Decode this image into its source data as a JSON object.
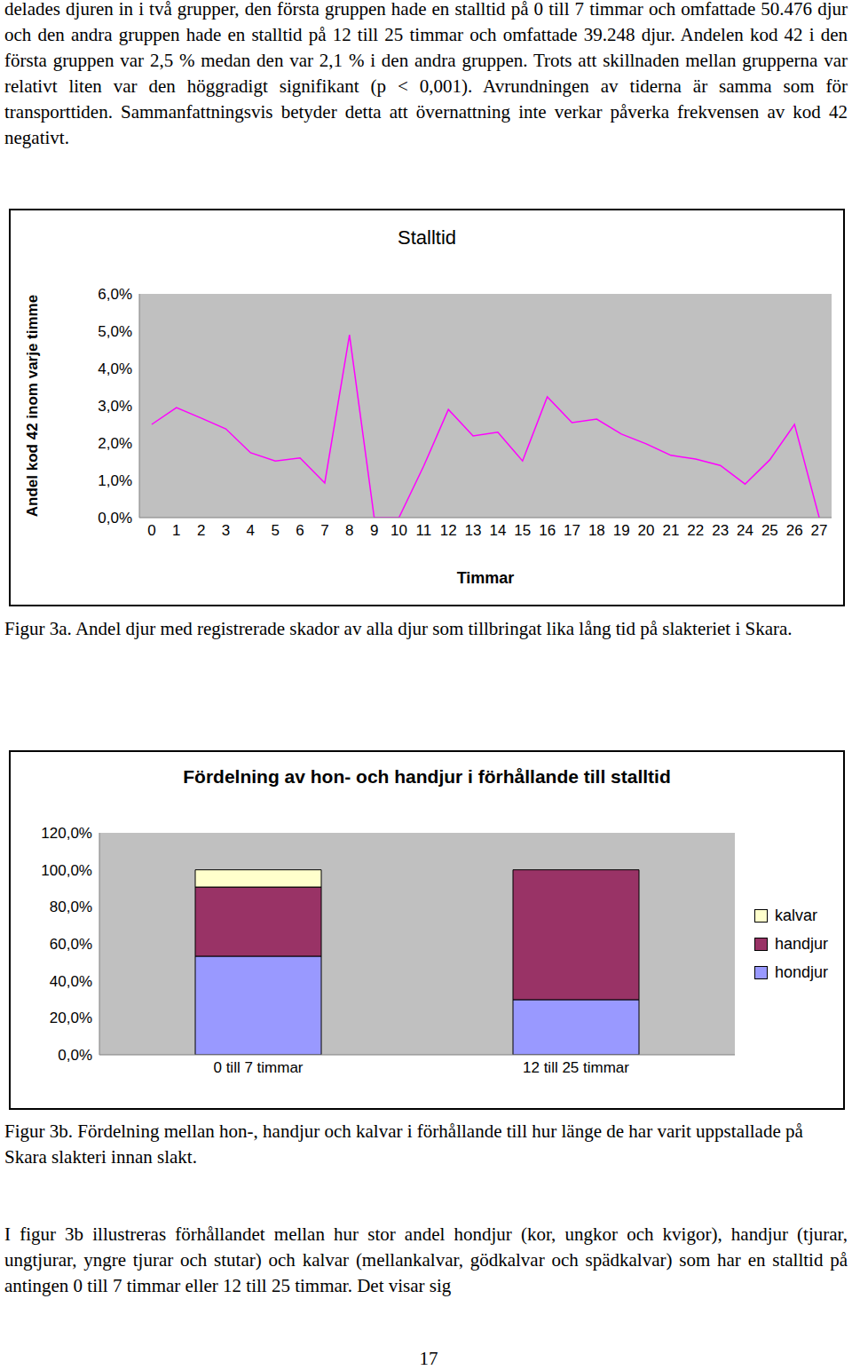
{
  "document": {
    "paragraphs": [
      "delades djuren in i två grupper, den första gruppen hade en stalltid på 0 till 7 timmar och omfattade 50.476 djur och den andra gruppen hade en stalltid på 12 till 25 timmar och omfattade 39.248 djur. Andelen kod 42 i den första gruppen var 2,5 % medan den var 2,1 % i den andra gruppen. Trots att skillnaden mellan grupperna var relativt liten var den höggradigt signifikant (p < 0,001). Avrundningen av tiderna är samma som för transporttiden. Sammanfattningsvis betyder detta att övernattning inte verkar påverka frekvensen av kod 42 negativt.",
      "I figur 3b illustreras förhållandet mellan hur stor andel hondjur (kor, ungkor och kvigor), handjur (tjurar, ungtjurar, yngre tjurar och stutar) och kalvar (mellankalvar, gödkalvar och spädkalvar) som har en stalltid på antingen 0 till 7 timmar eller 12 till 25 timmar. Det visar sig"
    ],
    "captions": [
      "Figur 3a. Andel djur med registrerade skador av alla djur som tillbringat lika lång tid på slakteriet i Skara.",
      "Figur 3b. Fördelning mellan hon-, handjur och kalvar i förhållande till hur länge de har varit uppstallade på Skara slakteri innan slakt."
    ],
    "page_number": "17"
  },
  "chart_data": [
    {
      "type": "line",
      "title": "Stalltid",
      "x_label": "Timmar",
      "y_label": "Andel kod 42 inom varje timme",
      "x": [
        0,
        1,
        2,
        3,
        4,
        5,
        6,
        7,
        8,
        9,
        10,
        11,
        12,
        13,
        14,
        15,
        16,
        17,
        18,
        19,
        20,
        21,
        22,
        23,
        24,
        25,
        26,
        27
      ],
      "values": [
        2.5,
        2.95,
        2.67,
        2.38,
        1.74,
        1.52,
        1.6,
        0.93,
        4.9,
        0,
        0,
        1.38,
        2.9,
        2.19,
        2.29,
        1.52,
        3.24,
        2.55,
        2.64,
        2.24,
        1.98,
        1.67,
        1.57,
        1.4,
        0.9,
        1.55,
        2.5,
        0
      ],
      "color": "#ff00ff",
      "xlim": [
        -0.5,
        27.5
      ],
      "xticks": [
        0,
        1,
        2,
        3,
        4,
        5,
        6,
        7,
        8,
        9,
        10,
        11,
        12,
        13,
        14,
        15,
        16,
        17,
        18,
        19,
        20,
        21,
        22,
        23,
        24,
        25,
        26,
        27
      ],
      "ylim": [
        0,
        6
      ],
      "yticks": [
        {
          "value": 0,
          "label": "0,0%"
        },
        {
          "value": 1,
          "label": "1,0%"
        },
        {
          "value": 2,
          "label": "2,0%"
        },
        {
          "value": 3,
          "label": "3,0%"
        },
        {
          "value": 4,
          "label": "4,0%"
        },
        {
          "value": 5,
          "label": "5,0%"
        },
        {
          "value": 6,
          "label": "6,0%"
        }
      ],
      "grid": false
    },
    {
      "type": "bar",
      "title": "Fördelning av hon- och handjur i förhållande till stalltid",
      "categories": [
        "0 till 7 timmar",
        "12 till 25 timmar"
      ],
      "series": [
        {
          "name": "hondjur",
          "color": "#9999ff",
          "values": [
            53.3,
            29.8
          ]
        },
        {
          "name": "handjur",
          "color": "#993366",
          "values": [
            37.4,
            70.2
          ]
        },
        {
          "name": "kalvar",
          "color": "#ffffcc",
          "values": [
            9.3,
            0
          ]
        }
      ],
      "stacked": true,
      "ylim": [
        0,
        120
      ],
      "yticks": [
        {
          "value": 0,
          "label": "0,0%"
        },
        {
          "value": 20,
          "label": "20,0%"
        },
        {
          "value": 40,
          "label": "40,0%"
        },
        {
          "value": 60,
          "label": "60,0%"
        },
        {
          "value": 80,
          "label": "80,0%"
        },
        {
          "value": 100,
          "label": "100,0%"
        },
        {
          "value": 120,
          "label": "120,0%"
        }
      ],
      "grid": false,
      "legend": "right"
    }
  ]
}
